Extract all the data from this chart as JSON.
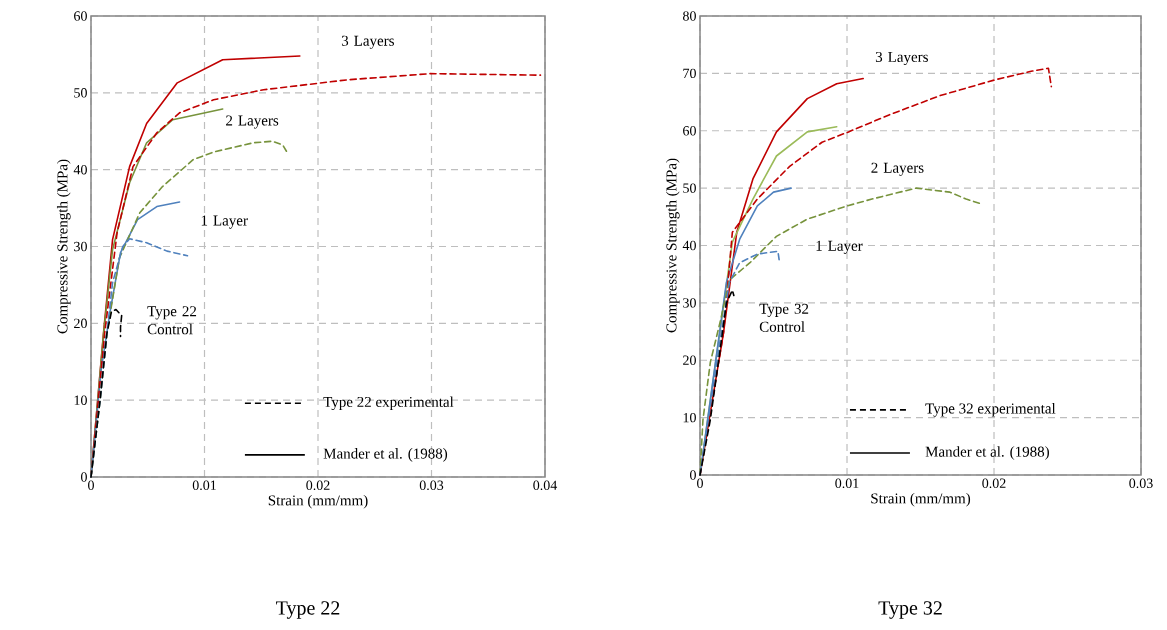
{
  "chart_data": [
    {
      "type": "line",
      "title": "Type 22",
      "xlabel": "Strain (mm/mm)",
      "ylabel": "Compressive Strength (MPa)",
      "xlim": [
        0,
        0.04
      ],
      "ylim": [
        0,
        60
      ],
      "xticks": [
        0,
        0.01,
        0.02,
        0.03,
        0.04
      ],
      "yticks": [
        0,
        10,
        20,
        30,
        40,
        50,
        60
      ],
      "grid": true,
      "series": [
        {
          "color": "#000000",
          "line_style": "dashed",
          "x": [
            0,
            0.0008,
            0.0014,
            0.0018,
            0.0022,
            0.0027,
            0.0026,
            0.0026
          ],
          "values": [
            0,
            10,
            18.7,
            21.5,
            21.8,
            21,
            19.5,
            18.3
          ]
        },
        {
          "color": "#4f81bd",
          "line_style": "dashed",
          "x": [
            0,
            0.0008,
            0.0014,
            0.0019,
            0.0028,
            0.0034,
            0.0049,
            0.0067,
            0.0085
          ],
          "values": [
            0,
            10,
            18.7,
            25.3,
            30,
            31,
            30.5,
            29.4,
            28.8
          ]
        },
        {
          "color": "#77933c",
          "line_style": "dashed",
          "x": [
            0,
            0.0008,
            0.0014,
            0.0025,
            0.0043,
            0.0063,
            0.009,
            0.0108,
            0.0143,
            0.016,
            0.0169,
            0.0173
          ],
          "values": [
            0,
            10,
            18.7,
            28.5,
            34.4,
            37.8,
            41.3,
            42.3,
            43.5,
            43.7,
            43.2,
            42.2
          ]
        },
        {
          "color": "#c00000",
          "line_style": "dashed",
          "x": [
            0,
            0.0012,
            0.0023,
            0.0037,
            0.0058,
            0.0078,
            0.0108,
            0.0152,
            0.0226,
            0.0263,
            0.0299,
            0.0396
          ],
          "values": [
            0,
            18.7,
            31.8,
            40.4,
            44.8,
            47.4,
            49.1,
            50.4,
            51.7,
            52.1,
            52.5,
            52.3
          ]
        },
        {
          "color": "#4f81bd",
          "line_style": "solid",
          "x": [
            0,
            0.0009,
            0.0017,
            0.0026,
            0.0041,
            0.0058,
            0.0078
          ],
          "values": [
            0,
            14,
            21.7,
            29.2,
            33.5,
            35.2,
            35.8
          ]
        },
        {
          "color": "#77933c",
          "line_style": "solid",
          "x": [
            0,
            0.0011,
            0.0019,
            0.0034,
            0.0049,
            0.0072,
            0.0116
          ],
          "values": [
            0,
            18.5,
            29.6,
            38.3,
            43.5,
            46.5,
            47.9
          ]
        },
        {
          "color": "#c00000",
          "line_style": "solid",
          "x": [
            0,
            0.0011,
            0.0019,
            0.0034,
            0.0049,
            0.0076,
            0.0116,
            0.0184
          ],
          "values": [
            0,
            18.7,
            30.9,
            40.4,
            46,
            51.3,
            54.3,
            54.8
          ]
        }
      ],
      "annotations": [
        "Type 22 experimental",
        "Mander et al. (1988)",
        "3 Layers",
        "2 Layers",
        "1 Layer",
        "Type 22 Control"
      ]
    },
    {
      "type": "line",
      "title": "Type 32",
      "xlabel": "Strain (mm/mm)",
      "ylabel": "Compressive Strength (MPa)",
      "xlim": [
        0,
        0.03
      ],
      "ylim": [
        0,
        80
      ],
      "xticks": [
        0,
        0.01,
        0.02,
        0.03
      ],
      "yticks": [
        0,
        10,
        20,
        30,
        40,
        50,
        60,
        70,
        80
      ],
      "grid": true,
      "series": [
        {
          "color": "#000000",
          "line_style": "dashed",
          "x": [
            0,
            0.0007,
            0.0014,
            0.0018,
            0.0022,
            0.0023
          ],
          "values": [
            0,
            9.6,
            22.4,
            30,
            32.2,
            31.3
          ]
        },
        {
          "color": "#4f81bd",
          "line_style": "dashed",
          "x": [
            0,
            0.0007,
            0.0014,
            0.002,
            0.0027,
            0.0039,
            0.0053,
            0.0054
          ],
          "values": [
            0,
            12,
            24,
            33.6,
            37,
            38.5,
            39,
            37.2
          ]
        },
        {
          "color": "#77933c",
          "line_style": "dashed",
          "x": [
            0,
            0.0002,
            0.0007,
            0.0014,
            0.002,
            0.0034,
            0.0052,
            0.0073,
            0.01,
            0.0117,
            0.0147,
            0.017,
            0.0181,
            0.0192
          ],
          "values": [
            0,
            9.6,
            19.6,
            27,
            34,
            37,
            41.6,
            44.6,
            46.9,
            48.1,
            50,
            49.3,
            48.1,
            47.2
          ]
        },
        {
          "color": "#c00000",
          "line_style": "dashed",
          "x": [
            0,
            0.0016,
            0.0022,
            0.0039,
            0.0061,
            0.0083,
            0.0101,
            0.0129,
            0.0163,
            0.0201,
            0.0226,
            0.0237,
            0.0239
          ],
          "values": [
            0,
            24.8,
            42.3,
            48.1,
            53.8,
            58,
            59.8,
            62.8,
            66.1,
            68.9,
            70.4,
            70.9,
            67.7
          ]
        },
        {
          "color": "#4f81bd",
          "line_style": "solid",
          "x": [
            0,
            0.0018,
            0.0027,
            0.0039,
            0.005,
            0.0062
          ],
          "values": [
            0,
            33.6,
            41.1,
            46.9,
            49.3,
            50
          ]
        },
        {
          "color": "#9bbb59",
          "line_style": "solid",
          "x": [
            0,
            0.0022,
            0.0036,
            0.0052,
            0.0073,
            0.0093
          ],
          "values": [
            0,
            40.6,
            48.1,
            55.6,
            59.8,
            60.7
          ]
        },
        {
          "color": "#c00000",
          "line_style": "solid",
          "x": [
            0,
            0.0016,
            0.0025,
            0.0036,
            0.0052,
            0.0073,
            0.0093,
            0.0111
          ],
          "values": [
            0,
            24.8,
            42.3,
            51.6,
            59.8,
            65.6,
            68.2,
            69.1
          ]
        }
      ],
      "annotations": [
        "Type 32 experimental",
        "Mander et al. (1988)",
        "3 Layers",
        "2 Layers",
        "1 Layer",
        "Type 32 Control"
      ]
    }
  ]
}
